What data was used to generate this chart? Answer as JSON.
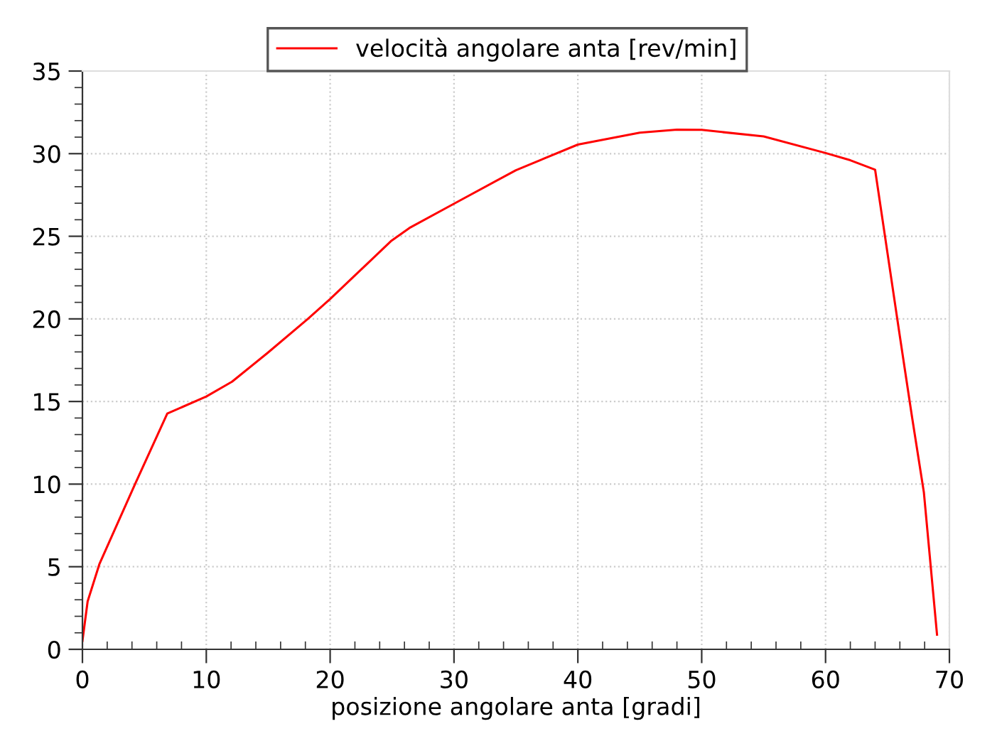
{
  "chart_data": {
    "type": "line",
    "xlabel": "posizione angolare anta [gradi]",
    "xlim": [
      0,
      70
    ],
    "xticks": [
      0,
      10,
      20,
      30,
      40,
      50,
      60,
      70
    ],
    "ylim": [
      0,
      35
    ],
    "yticks": [
      0,
      5,
      10,
      15,
      20,
      25,
      30,
      35
    ],
    "grid": true,
    "legend": "top",
    "line_style": "solid",
    "marker": "none",
    "x": [
      0,
      0.42,
      1.38,
      4.25,
      6.85,
      10,
      12.08,
      14.95,
      18.2,
      20,
      24.9,
      26.4,
      30,
      35,
      40,
      45,
      48,
      50,
      55,
      60,
      62,
      64,
      66,
      66.98,
      67.94,
      69
    ],
    "series": [
      {
        "name": "velocità angolare anta [rev/min]",
        "color": "#ff0000",
        "values": [
          0.5,
          2.9,
          5.18,
          10,
          14.27,
          15.3,
          16.2,
          17.94,
          20,
          21.2,
          24.7,
          25.5,
          26.97,
          29.0,
          30.55,
          31.27,
          31.45,
          31.44,
          31.04,
          30.04,
          29.6,
          29.03,
          18.94,
          14.07,
          9.49,
          0.89
        ]
      }
    ]
  }
}
